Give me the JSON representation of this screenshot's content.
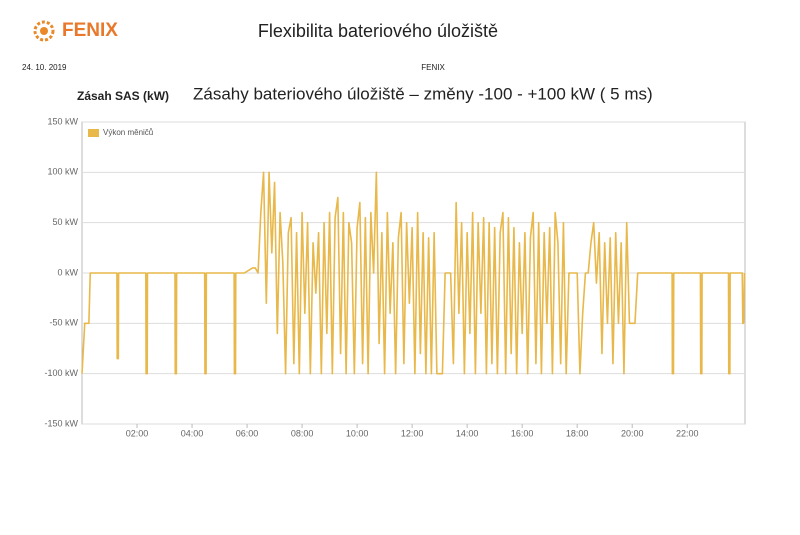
{
  "header": {
    "logo": "FENIX",
    "title": "Flexibilita bateriového úložiště",
    "date": "24. 10. 2019",
    "source": "FENIX"
  },
  "chart_data": {
    "type": "line",
    "title": "Zásahy bateriového úložiště – změny -100 - +100 kW ( 5 ms)",
    "y_label": "Zásah SAS (kW)",
    "xlim": [
      0,
      24.1
    ],
    "xticks": [
      {
        "value": 2,
        "label": "02:00"
      },
      {
        "value": 4,
        "label": "04:00"
      },
      {
        "value": 6,
        "label": "06:00"
      },
      {
        "value": 8,
        "label": "08:00"
      },
      {
        "value": 10,
        "label": "10:00"
      },
      {
        "value": 12,
        "label": "12:00"
      },
      {
        "value": 14,
        "label": "14:00"
      },
      {
        "value": 16,
        "label": "16:00"
      },
      {
        "value": 18,
        "label": "18:00"
      },
      {
        "value": 20,
        "label": "20:00"
      },
      {
        "value": 22,
        "label": "22:00"
      }
    ],
    "ylim": [
      -150,
      150
    ],
    "yticks": [
      {
        "value": -150,
        "label": "-150 kW"
      },
      {
        "value": -100,
        "label": "-100 kW"
      },
      {
        "value": -50,
        "label": "-50 kW"
      },
      {
        "value": 0,
        "label": "0 kW"
      },
      {
        "value": 50,
        "label": "50 kW"
      },
      {
        "value": 100,
        "label": "100 kW"
      },
      {
        "value": 150,
        "label": "150 kW"
      }
    ],
    "grid": true,
    "legend": "top-left",
    "x": [
      0,
      0.1,
      0.25,
      0.3,
      1.27,
      1.28,
      1.32,
      1.33,
      2.32,
      2.33,
      2.37,
      2.38,
      3.38,
      3.39,
      3.43,
      3.44,
      4.46,
      4.47,
      4.51,
      4.52,
      5.53,
      5.54,
      5.58,
      5.59,
      5.9,
      6.2,
      6.3,
      6.4,
      6.5,
      6.6,
      6.7,
      6.8,
      6.9,
      7.0,
      7.1,
      7.2,
      7.3,
      7.4,
      7.5,
      7.6,
      7.7,
      7.8,
      7.9,
      8.0,
      8.1,
      8.2,
      8.3,
      8.4,
      8.5,
      8.6,
      8.7,
      8.8,
      8.9,
      9.0,
      9.1,
      9.2,
      9.3,
      9.4,
      9.5,
      9.6,
      9.7,
      9.8,
      9.9,
      10.0,
      10.1,
      10.2,
      10.3,
      10.4,
      10.5,
      10.6,
      10.7,
      10.8,
      10.9,
      11.0,
      11.1,
      11.2,
      11.3,
      11.4,
      11.5,
      11.6,
      11.7,
      11.8,
      11.9,
      12.0,
      12.1,
      12.2,
      12.3,
      12.4,
      12.5,
      12.6,
      12.7,
      12.8,
      12.9,
      13.0,
      13.1,
      13.2,
      13.3,
      13.4,
      13.5,
      13.6,
      13.7,
      13.8,
      13.9,
      14.0,
      14.1,
      14.2,
      14.3,
      14.4,
      14.5,
      14.6,
      14.7,
      14.8,
      14.9,
      15.0,
      15.1,
      15.2,
      15.3,
      15.4,
      15.5,
      15.6,
      15.7,
      15.8,
      15.9,
      16.0,
      16.1,
      16.2,
      16.3,
      16.4,
      16.5,
      16.6,
      16.7,
      16.8,
      16.9,
      17.0,
      17.1,
      17.2,
      17.3,
      17.4,
      17.5,
      17.6,
      17.7,
      17.8,
      17.9,
      18.0,
      18.1,
      18.2,
      18.3,
      18.4,
      18.5,
      18.6,
      18.7,
      18.8,
      18.9,
      19.0,
      19.1,
      19.2,
      19.3,
      19.4,
      19.5,
      19.6,
      19.7,
      19.8,
      19.9,
      20.0,
      20.1,
      20.2,
      20.3,
      20.4,
      21.45,
      21.46,
      21.5,
      21.51,
      22.48,
      22.49,
      22.53,
      22.54,
      23.5,
      23.51,
      23.55,
      23.56,
      24.0,
      24.02,
      24.05,
      24.08
    ],
    "series": [
      {
        "name": "Výkon měničů",
        "color": "#e8b84a",
        "values": [
          -100,
          -50,
          -50,
          0,
          0,
          -85,
          -85,
          0,
          0,
          -100,
          -100,
          0,
          0,
          -100,
          -100,
          0,
          0,
          -100,
          -100,
          0,
          0,
          -100,
          -100,
          0,
          0,
          5,
          5,
          0,
          60,
          100,
          -30,
          100,
          20,
          90,
          -60,
          60,
          10,
          -100,
          40,
          55,
          -90,
          40,
          -100,
          60,
          -40,
          50,
          -100,
          30,
          -20,
          40,
          -100,
          50,
          -60,
          60,
          -100,
          55,
          75,
          -80,
          60,
          -100,
          50,
          30,
          -100,
          45,
          70,
          -90,
          55,
          -100,
          60,
          0,
          100,
          -70,
          40,
          -100,
          60,
          -40,
          30,
          -100,
          35,
          60,
          -90,
          50,
          -30,
          45,
          -100,
          60,
          -80,
          40,
          -100,
          35,
          -100,
          40,
          -100,
          -100,
          -100,
          0,
          0,
          0,
          -90,
          70,
          -40,
          50,
          -100,
          40,
          -60,
          60,
          -100,
          50,
          -40,
          55,
          -100,
          50,
          -90,
          45,
          -100,
          40,
          60,
          -100,
          55,
          -80,
          45,
          -100,
          30,
          -60,
          40,
          -100,
          35,
          60,
          -90,
          50,
          -100,
          40,
          -50,
          45,
          -100,
          60,
          30,
          -90,
          50,
          -100,
          0,
          0,
          0,
          0,
          -100,
          -40,
          0,
          0,
          30,
          50,
          -10,
          40,
          -80,
          30,
          -50,
          35,
          -90,
          40,
          -50,
          30,
          -100,
          50,
          -50,
          -50,
          -50,
          0,
          0,
          0,
          0,
          -100,
          -100,
          0,
          0,
          -100,
          -100,
          0,
          0,
          -100,
          -100,
          0,
          0,
          -50,
          -50,
          0
        ]
      }
    ]
  }
}
